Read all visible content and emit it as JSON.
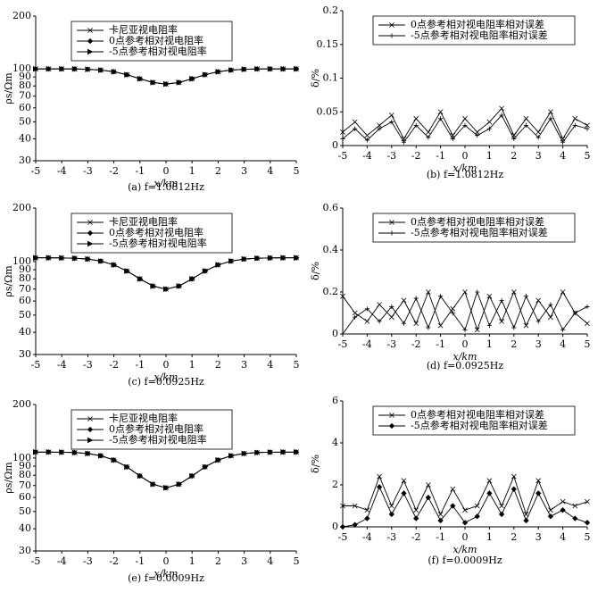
{
  "chart_data": [
    {
      "type": "line",
      "caption": "(a) f=1.0812Hz",
      "xlabel": "x/km",
      "ylabel": "ρs/Ωm",
      "yscale": "log",
      "legend": "upper left",
      "x": [
        -5,
        -4.5,
        -4,
        -3.5,
        -3,
        -2.5,
        -2,
        -1.5,
        -1,
        -0.5,
        0,
        0.5,
        1,
        1.5,
        2,
        2.5,
        3,
        3.5,
        4,
        4.5,
        5
      ],
      "xlim": [
        -5,
        5
      ],
      "xticks": [
        -5,
        -4,
        -3,
        -2,
        -1,
        0,
        1,
        2,
        3,
        4,
        5
      ],
      "ylim": [
        30,
        200
      ],
      "yticks": [
        30,
        40,
        50,
        60,
        70,
        80,
        90,
        100,
        200
      ],
      "series": [
        {
          "name": "卡尼亚视电阻率",
          "color": "#000000",
          "marker": "x",
          "values": [
            100,
            100,
            100,
            100,
            99.5,
            98.5,
            96.4,
            92.7,
            87.9,
            83.7,
            82,
            83.7,
            87.9,
            92.7,
            96.4,
            98.5,
            99.5,
            100,
            100,
            100,
            100
          ]
        },
        {
          "name": "0点参考相对视电阻率",
          "color": "#000000",
          "marker": "diamond",
          "values": [
            100,
            100,
            100,
            100,
            99.5,
            98.5,
            96.4,
            92.7,
            87.9,
            83.7,
            82,
            83.7,
            87.9,
            92.7,
            96.4,
            98.5,
            99.5,
            100,
            100,
            100,
            100
          ]
        },
        {
          "name": "-5点参考相对视电阻率",
          "color": "#000000",
          "marker": "triangle",
          "values": [
            100,
            100,
            100,
            100,
            99.5,
            98.5,
            96.4,
            92.7,
            87.9,
            83.7,
            82,
            83.7,
            87.9,
            92.7,
            96.4,
            98.5,
            99.5,
            100,
            100,
            100,
            100
          ]
        }
      ]
    },
    {
      "type": "line",
      "caption": "(b) f=1.0812Hz",
      "xlabel": "x/km",
      "ylabel": "δ/%",
      "yscale": "linear",
      "legend": "upper center",
      "x": [
        -5,
        -4.5,
        -4,
        -3.5,
        -3,
        -2.5,
        -2,
        -1.5,
        -1,
        -0.5,
        0,
        0.5,
        1,
        1.5,
        2,
        2.5,
        3,
        3.5,
        4,
        4.5,
        5
      ],
      "xlim": [
        -5,
        5
      ],
      "xticks": [
        -5,
        -4,
        -3,
        -2,
        -1,
        0,
        1,
        2,
        3,
        4,
        5
      ],
      "ylim": [
        0,
        0.2
      ],
      "yticks": [
        0,
        0.05,
        0.1,
        0.15,
        0.2
      ],
      "series": [
        {
          "name": "0点参考相对视电阻率相对误差",
          "color": "#000000",
          "marker": "x",
          "values": [
            0.02,
            0.035,
            0.015,
            0.03,
            0.045,
            0.01,
            0.04,
            0.02,
            0.05,
            0.015,
            0.04,
            0.02,
            0.035,
            0.055,
            0.015,
            0.04,
            0.02,
            0.05,
            0.01,
            0.04,
            0.03
          ]
        },
        {
          "name": "-5点参考相对视电阻率相对误差",
          "color": "#000000",
          "marker": "plus",
          "values": [
            0.01,
            0.025,
            0.008,
            0.025,
            0.035,
            0.005,
            0.03,
            0.012,
            0.04,
            0.01,
            0.03,
            0.015,
            0.025,
            0.045,
            0.01,
            0.03,
            0.012,
            0.04,
            0.005,
            0.03,
            0.025
          ]
        }
      ]
    },
    {
      "type": "line",
      "caption": "(c) f=0.0925Hz",
      "xlabel": "x/km",
      "ylabel": "ρs/Ωm",
      "yscale": "log",
      "legend": "upper left",
      "x": [
        -5,
        -4.5,
        -4,
        -3.5,
        -3,
        -2.5,
        -2,
        -1.5,
        -1,
        -0.5,
        0,
        0.5,
        1,
        1.5,
        2,
        2.5,
        3,
        3.5,
        4,
        4.5,
        5
      ],
      "xlim": [
        -5,
        5
      ],
      "xticks": [
        -5,
        -4,
        -3,
        -2,
        -1,
        0,
        1,
        2,
        3,
        4,
        5
      ],
      "ylim": [
        30,
        200
      ],
      "yticks": [
        30,
        40,
        50,
        60,
        70,
        80,
        90,
        100,
        200
      ],
      "series": [
        {
          "name": "卡尼亚视电阻率",
          "color": "#000000",
          "marker": "x",
          "values": [
            105,
            105,
            104.8,
            104.4,
            103.3,
            100.6,
            95.8,
            88.5,
            79.9,
            72.8,
            70,
            72.8,
            79.9,
            88.5,
            95.8,
            100.6,
            103.3,
            104.4,
            104.8,
            105,
            105
          ]
        },
        {
          "name": "0点参考相对视电阻率",
          "color": "#000000",
          "marker": "diamond",
          "values": [
            105,
            105,
            104.8,
            104.4,
            103.3,
            100.6,
            95.8,
            88.5,
            79.9,
            72.8,
            70,
            72.8,
            79.9,
            88.5,
            95.8,
            100.6,
            103.3,
            104.4,
            104.8,
            105,
            105
          ]
        },
        {
          "name": "-5点参考相对视电阻率",
          "color": "#000000",
          "marker": "triangle",
          "values": [
            105,
            105,
            104.8,
            104.4,
            103.3,
            100.6,
            95.8,
            88.5,
            79.9,
            72.8,
            70,
            72.8,
            79.9,
            88.5,
            95.8,
            100.6,
            103.3,
            104.4,
            104.8,
            105,
            105
          ]
        }
      ]
    },
    {
      "type": "line",
      "caption": "(d) f=0.0925Hz",
      "xlabel": "x/km",
      "ylabel": "δ/%",
      "yscale": "linear",
      "legend": "upper center",
      "x": [
        -5,
        -4.5,
        -4,
        -3.5,
        -3,
        -2.5,
        -2,
        -1.5,
        -1,
        -0.5,
        0,
        0.5,
        1,
        1.5,
        2,
        2.5,
        3,
        3.5,
        4,
        4.5,
        5
      ],
      "xlim": [
        -5,
        5
      ],
      "xticks": [
        -5,
        -4,
        -3,
        -2,
        -1,
        0,
        1,
        2,
        3,
        4,
        5
      ],
      "ylim": [
        0,
        0.6
      ],
      "yticks": [
        0,
        0.2,
        0.4,
        0.6
      ],
      "series": [
        {
          "name": "0点参考相对视电阻率相对误差",
          "color": "#000000",
          "marker": "x",
          "values": [
            0.18,
            0.1,
            0.06,
            0.14,
            0.08,
            0.16,
            0.05,
            0.2,
            0.04,
            0.12,
            0.2,
            0.02,
            0.18,
            0.06,
            0.2,
            0.04,
            0.16,
            0.08,
            0.2,
            0.1,
            0.05
          ]
        },
        {
          "name": "-5点参考相对视电阻率相对误差",
          "color": "#000000",
          "marker": "plus",
          "values": [
            0,
            0.08,
            0.12,
            0.06,
            0.13,
            0.05,
            0.17,
            0.03,
            0.18,
            0.1,
            0.02,
            0.2,
            0.04,
            0.16,
            0.03,
            0.18,
            0.06,
            0.14,
            0.02,
            0.1,
            0.13
          ]
        }
      ]
    },
    {
      "type": "line",
      "caption": "(e) f=0.0009Hz",
      "xlabel": "x/km",
      "ylabel": "ρs/Ωm",
      "yscale": "log",
      "legend": "upper left",
      "x": [
        -5,
        -4.5,
        -4,
        -3.5,
        -3,
        -2.5,
        -2,
        -1.5,
        -1,
        -0.5,
        0,
        0.5,
        1,
        1.5,
        2,
        2.5,
        3,
        3.5,
        4,
        4.5,
        5
      ],
      "xlim": [
        -5,
        5
      ],
      "xticks": [
        -5,
        -4,
        -3,
        -2,
        -1,
        0,
        1,
        2,
        3,
        4,
        5
      ],
      "ylim": [
        30,
        200
      ],
      "yticks": [
        30,
        40,
        50,
        60,
        70,
        80,
        90,
        100,
        200
      ],
      "series": [
        {
          "name": "卡尼亚视电阻率",
          "color": "#000000",
          "marker": "x",
          "values": [
            108,
            108,
            107.8,
            107.3,
            106,
            103,
            97.4,
            89.1,
            79.3,
            71.2,
            68,
            71.2,
            79.3,
            89.1,
            97.4,
            103,
            106,
            107.3,
            107.8,
            108,
            108
          ]
        },
        {
          "name": "0点参考相对视电阻率",
          "color": "#000000",
          "marker": "diamond",
          "values": [
            108,
            108,
            107.8,
            107.3,
            106,
            103,
            97.4,
            89.1,
            79.3,
            71.2,
            68,
            71.2,
            79.3,
            89.1,
            97.4,
            103,
            106,
            107.3,
            107.8,
            108,
            108
          ]
        },
        {
          "name": "-5点参考相对视电阻率",
          "color": "#000000",
          "marker": "triangle",
          "values": [
            108,
            108,
            107.8,
            107.3,
            106,
            103,
            97.4,
            89.1,
            79.3,
            71.2,
            68,
            71.2,
            79.3,
            89.1,
            97.4,
            103,
            106,
            107.3,
            107.8,
            108,
            108
          ]
        }
      ]
    },
    {
      "type": "line",
      "caption": "(f) f=0.0009Hz",
      "xlabel": "x/km",
      "ylabel": "δ/%",
      "yscale": "linear",
      "legend": "upper center",
      "x": [
        -5,
        -4.5,
        -4,
        -3.5,
        -3,
        -2.5,
        -2,
        -1.5,
        -1,
        -0.5,
        0,
        0.5,
        1,
        1.5,
        2,
        2.5,
        3,
        3.5,
        4,
        4.5,
        5
      ],
      "xlim": [
        -5,
        5
      ],
      "xticks": [
        -5,
        -4,
        -3,
        -2,
        -1,
        0,
        1,
        2,
        3,
        4,
        5
      ],
      "ylim": [
        0,
        6
      ],
      "yticks": [
        0,
        2,
        4,
        6
      ],
      "series": [
        {
          "name": "0点参考相对视电阻率相对误差",
          "color": "#000000",
          "marker": "x",
          "values": [
            1,
            1,
            0.8,
            2.4,
            1,
            2.2,
            0.8,
            2,
            0.6,
            1.8,
            0.8,
            1,
            2.2,
            1,
            2.4,
            0.6,
            2.2,
            0.8,
            1.2,
            1,
            1.2
          ]
        },
        {
          "name": "-5点参考相对视电阻率相对误差",
          "color": "#000000",
          "marker": "diamond",
          "values": [
            0,
            0.1,
            0.4,
            1.9,
            0.6,
            1.6,
            0.4,
            1.4,
            0.3,
            1,
            0.2,
            0.5,
            1.6,
            0.6,
            1.8,
            0.3,
            1.6,
            0.5,
            0.8,
            0.4,
            0.2
          ]
        }
      ]
    }
  ]
}
